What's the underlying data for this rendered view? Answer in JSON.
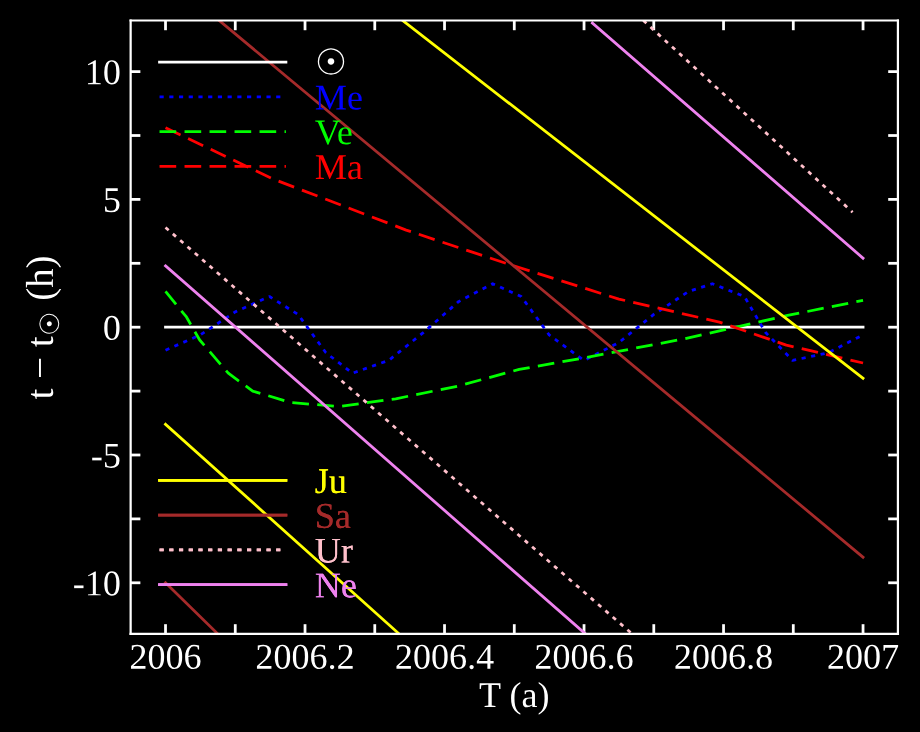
{
  "chart_data": {
    "type": "line",
    "xlabel": "T (a)",
    "ylabel": "t − t$_{☉}$ (h)",
    "xlim": [
      2005.95,
      2007.05
    ],
    "ylim": [
      -12,
      12
    ],
    "xticks": [
      2006,
      {
        "value": 2006.1,
        "label": null
      },
      2006.2,
      {
        "value": 2006.3,
        "label": null
      },
      2006.4,
      {
        "value": 2006.5,
        "label": null
      },
      2006.6,
      {
        "value": 2006.7,
        "label": null
      },
      2006.8,
      {
        "value": 2006.9,
        "label": null
      },
      2007
    ],
    "yticks": [
      -10,
      {
        "value": -7.5,
        "label": null
      },
      -5,
      {
        "value": -2.5,
        "label": null
      },
      0,
      {
        "value": 2.5,
        "label": null
      },
      5,
      {
        "value": 7.5,
        "label": null
      },
      10
    ],
    "grid": false,
    "legend": "left",
    "marker": "none",
    "series": [
      {
        "name": "☉",
        "color": "#ffffff",
        "line_style": "solid",
        "x": [
          2006,
          2007
        ],
        "values": [
          0,
          0
        ]
      },
      {
        "name": "Me",
        "color": "#0000ff",
        "line_style": "dotted",
        "x": [
          2006.0,
          2006.05,
          2006.1,
          2006.149,
          2006.19,
          2006.23,
          2006.268,
          2006.32,
          2006.37,
          2006.42,
          2006.469,
          2006.51,
          2006.55,
          2006.6,
          2006.65,
          2006.7,
          2006.75,
          2006.784,
          2006.83,
          2006.86,
          2006.899,
          2006.95,
          2007.0
        ],
        "values": [
          -0.9,
          -0.3,
          0.6,
          1.2,
          0.5,
          -1.0,
          -1.8,
          -1.3,
          -0.2,
          1.0,
          1.7,
          1.2,
          -0.3,
          -1.3,
          -0.6,
          0.5,
          1.4,
          1.7,
          1.2,
          -0.2,
          -1.3,
          -1.0,
          -0.3
        ]
      },
      {
        "name": "Ve",
        "color": "#00ff00",
        "line_style": "dashed",
        "x": [
          2006.0,
          2006.03,
          2006.049,
          2006.09,
          2006.125,
          2006.18,
          2006.249,
          2006.33,
          2006.42,
          2006.507,
          2006.6,
          2006.745,
          2006.89,
          2007.0
        ],
        "values": [
          1.4,
          0.4,
          -0.5,
          -1.8,
          -2.5,
          -2.95,
          -3.1,
          -2.8,
          -2.3,
          -1.65,
          -1.2,
          -0.45,
          0.45,
          1.05
        ]
      },
      {
        "name": "Ma",
        "color": "#ff0000",
        "line_style": "dashed",
        "x": [
          2006.0,
          2006.154,
          2006.345,
          2006.488,
          2006.65,
          2006.794,
          2006.89,
          2007.0
        ],
        "values": [
          7.8,
          5.8,
          3.8,
          2.5,
          1.1,
          0.2,
          -0.7,
          -1.4
        ]
      },
      {
        "name": "Ju",
        "color": "#ffff00",
        "line_style": "solid",
        "x": [
          2006.0,
          2006.335,
          2006.337,
          2006.34,
          2007.0
        ],
        "values": [
          -3.8,
          -12,
          null,
          12,
          -2.0
        ]
      },
      {
        "name": "Sa",
        "color": "#a52a2a",
        "line_style": "solid",
        "x": [
          2006.0,
          2006.075,
          2006.076,
          2006.077,
          2007.0
        ],
        "values": [
          -10,
          -12,
          null,
          12,
          -9
        ]
      },
      {
        "name": "Ur",
        "color": "#ffc0cb",
        "line_style": "dotted",
        "x": [
          2006.0,
          2006.669,
          2006.677,
          2006.685,
          2006.985
        ],
        "values": [
          3.9,
          -12,
          null,
          12,
          4.5
        ]
      },
      {
        "name": "Ne",
        "color": "#ee82ee",
        "line_style": "solid",
        "x": [
          2006.0,
          2006.602,
          2006.607,
          2006.612,
          2007.0
        ],
        "values": [
          2.4,
          -12,
          null,
          11.9,
          2.7
        ]
      }
    ]
  }
}
